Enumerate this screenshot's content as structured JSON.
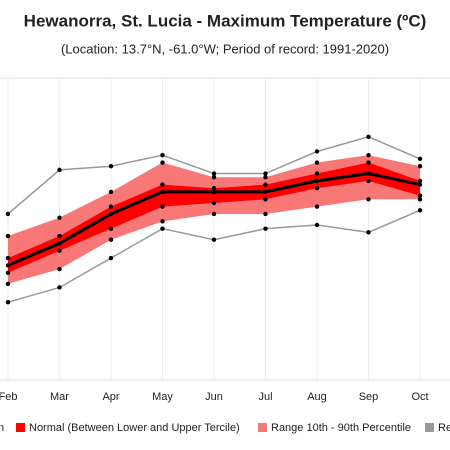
{
  "chart_data": {
    "type": "band",
    "title": "Hewanorra, St. Lucia - Maximum Temperature (ºC)",
    "subtitle": "(Location: 13.7°N, -61.0°W; Period of record: 1991-2020)",
    "categories": [
      "Feb",
      "Mar",
      "Apr",
      "May",
      "Jun",
      "Jul",
      "Aug",
      "Sep",
      "Oct"
    ],
    "ylim": [
      26.5,
      34.5
    ],
    "grid": true,
    "series": [
      {
        "name": "n",
        "kind": "line",
        "color": "#000000",
        "values": [
          29.4,
          30.0,
          30.8,
          31.4,
          31.4,
          31.4,
          31.7,
          31.9,
          31.6
        ]
      },
      {
        "name": "Normal (Between Lower and Upper Tercile)",
        "kind": "area",
        "color": "#ff0000",
        "lower": [
          29.2,
          29.8,
          30.4,
          31.0,
          31.1,
          31.2,
          31.5,
          31.7,
          31.3
        ],
        "upper": [
          29.6,
          30.2,
          31.0,
          31.6,
          31.5,
          31.6,
          31.9,
          32.2,
          31.7
        ]
      },
      {
        "name": "Range 10th - 90th Percentile",
        "kind": "area",
        "color": "#f87878",
        "lower": [
          28.9,
          29.3,
          30.1,
          30.6,
          30.8,
          30.8,
          31.0,
          31.2,
          31.2
        ],
        "upper": [
          30.2,
          30.7,
          31.4,
          32.2,
          31.8,
          31.8,
          32.2,
          32.4,
          32.1
        ]
      },
      {
        "name": "Re",
        "kind": "lines",
        "color": "#999999",
        "lower": [
          28.4,
          28.8,
          29.6,
          30.4,
          30.1,
          30.4,
          30.5,
          30.3,
          30.9
        ],
        "upper": [
          30.8,
          32.0,
          32.1,
          32.4,
          31.9,
          31.9,
          32.5,
          32.9,
          32.3
        ]
      }
    ]
  }
}
